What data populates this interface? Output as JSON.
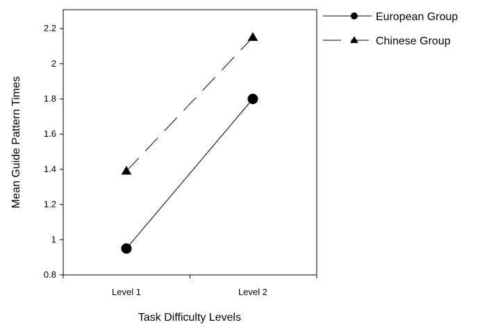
{
  "chart_data": {
    "type": "line",
    "categories": [
      "Level 1",
      "Level 2"
    ],
    "series": [
      {
        "name": "European Group",
        "values": [
          0.95,
          1.8
        ],
        "marker": "circle",
        "line_style": "solid",
        "color": "#000000"
      },
      {
        "name": "Chinese Group",
        "values": [
          1.39,
          2.15
        ],
        "marker": "triangle",
        "line_style": "dashed",
        "color": "#000000"
      }
    ],
    "xlabel": "Task Difficulty Levels",
    "ylabel": "Mean Guide Pattern Times",
    "ylim": [
      0.8,
      2.3
    ],
    "yticks": [
      0.8,
      1,
      1.2,
      1.4,
      1.6,
      1.8,
      2,
      2.2
    ],
    "ytick_labels": [
      "0.8",
      "1",
      "1.2",
      "1.4",
      "1.6",
      "1.8",
      "2",
      "2.2"
    ],
    "grid": false,
    "legend_position": "top-right-outside"
  }
}
